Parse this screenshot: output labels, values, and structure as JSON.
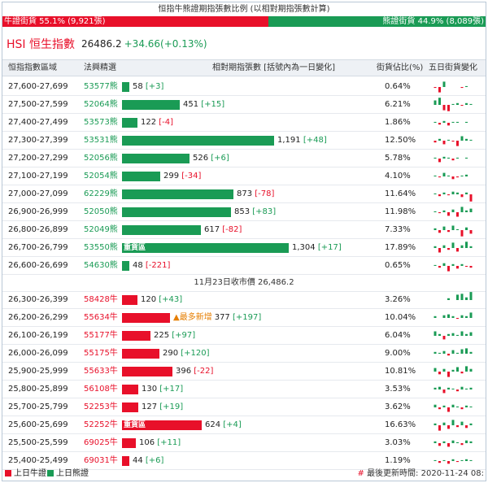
{
  "title": "恒指牛熊證期指張數比例 (以相對期指張數計算)",
  "ratio": {
    "bull_label": "牛證街貨 55.1% (9,921張)",
    "bull_pct": 55.1,
    "bear_label": "熊證街貨 44.9% (8,089張)",
    "bear_pct": 44.9
  },
  "hsi": {
    "name": "HSI 恒生指數",
    "value": "26486.2",
    "change": "+34.66(+0.13%)"
  },
  "headers": {
    "range": "恒指指數區域",
    "code": "法興精選",
    "qty": "相對期指張數 [括號內為一日變化]",
    "pct": "街貨佔比(%)",
    "chart": "五日街貨變化"
  },
  "colors": {
    "bull": "#e8102a",
    "bear": "#1a9b55",
    "new": "#e67e00"
  },
  "bear_rows": [
    {
      "range": "27,600-27,699",
      "code": "53577熊",
      "qty": "58",
      "chg": "[+3]",
      "neg": false,
      "pct": "0.64%",
      "tag": "",
      "spark": [
        0,
        -1,
        -6,
        6,
        0,
        0,
        0,
        -1,
        1,
        0
      ]
    },
    {
      "range": "27,500-27,599",
      "code": "52064熊",
      "qty": "451",
      "chg": "[+15]",
      "neg": false,
      "pct": "6.21%",
      "tag": "",
      "spark": [
        0,
        5,
        8,
        -6,
        -7,
        1,
        2,
        -1,
        2,
        1
      ]
    },
    {
      "range": "27,400-27,499",
      "code": "53573熊",
      "qty": "122",
      "chg": "[-4]",
      "neg": true,
      "pct": "1.86%",
      "tag": "",
      "spark": [
        0,
        1,
        -2,
        2,
        -3,
        1,
        1,
        0,
        1,
        0
      ]
    },
    {
      "range": "27,300-27,399",
      "code": "53531熊",
      "qty": "1,191",
      "chg": "[+48]",
      "neg": false,
      "pct": "12.50%",
      "tag": "",
      "spark": [
        0,
        -2,
        2,
        -4,
        1,
        -1,
        -6,
        5,
        2,
        1
      ]
    },
    {
      "range": "27,200-27,299",
      "code": "52056熊",
      "qty": "526",
      "chg": "[+6]",
      "neg": false,
      "pct": "5.78%",
      "tag": "",
      "spark": [
        0,
        1,
        -4,
        2,
        1,
        -2,
        1,
        0,
        1,
        0
      ]
    },
    {
      "range": "27,100-27,199",
      "code": "52054熊",
      "qty": "299",
      "chg": "[-34]",
      "neg": true,
      "pct": "4.10%",
      "tag": "",
      "spark": [
        0,
        1,
        -1,
        4,
        1,
        -3,
        -1,
        1,
        2,
        0
      ]
    },
    {
      "range": "27,000-27,099",
      "code": "62229熊",
      "qty": "873",
      "chg": "[-78]",
      "neg": true,
      "pct": "11.64%",
      "tag": "",
      "spark": [
        0,
        1,
        -2,
        2,
        -1,
        3,
        2,
        -3,
        2,
        -8
      ]
    },
    {
      "range": "26,900-26,999",
      "code": "52050熊",
      "qty": "853",
      "chg": "[+83]",
      "neg": false,
      "pct": "11.98%",
      "tag": "",
      "spark": [
        0,
        1,
        -1,
        2,
        -4,
        3,
        -5,
        6,
        2,
        4
      ]
    },
    {
      "range": "26,800-26,899",
      "code": "52049熊",
      "qty": "617",
      "chg": "[-82]",
      "neg": true,
      "pct": "7.33%",
      "tag": "",
      "spark": [
        0,
        2,
        -3,
        4,
        -2,
        5,
        1,
        -7,
        3,
        -4
      ]
    },
    {
      "range": "26,700-26,799",
      "code": "53550熊",
      "qty": "1,304",
      "chg": "[+17]",
      "neg": false,
      "pct": "17.89%",
      "tag": "重貨區",
      "spark": [
        0,
        2,
        -5,
        3,
        -2,
        6,
        -4,
        3,
        7,
        2
      ]
    },
    {
      "range": "26,600-26,699",
      "code": "54630熊",
      "qty": "48",
      "chg": "[-221]",
      "neg": true,
      "pct": "0.65%",
      "tag": "",
      "spark": [
        0,
        1,
        -2,
        3,
        -6,
        2,
        -3,
        2,
        -1,
        -2
      ]
    }
  ],
  "close_line": "11月23日收市價 26,486.2",
  "bull_rows": [
    {
      "range": "26,300-26,399",
      "code": "58428牛",
      "qty": "120",
      "chg": "[+43]",
      "neg": false,
      "pct": "3.26%",
      "tag": "",
      "newflag": "",
      "spark": [
        0,
        0,
        0,
        0,
        2,
        0,
        6,
        7,
        3,
        9
      ]
    },
    {
      "range": "26,200-26,299",
      "code": "55634牛",
      "qty": "377",
      "chg": "[+197]",
      "neg": false,
      "pct": "10.04%",
      "tag": "",
      "newflag": "▲最多新增",
      "spark": [
        0,
        2,
        0,
        3,
        4,
        2,
        -1,
        3,
        2,
        6
      ]
    },
    {
      "range": "26,100-26,199",
      "code": "55177牛",
      "qty": "225",
      "chg": "[+97]",
      "neg": false,
      "pct": "6.04%",
      "tag": "",
      "newflag": "",
      "spark": [
        0,
        5,
        2,
        -4,
        2,
        3,
        1,
        5,
        2,
        4
      ]
    },
    {
      "range": "26,000-26,099",
      "code": "55175牛",
      "qty": "290",
      "chg": "[+120]",
      "neg": false,
      "pct": "9.00%",
      "tag": "",
      "newflag": "",
      "spark": [
        0,
        2,
        1,
        3,
        -2,
        4,
        1,
        5,
        6,
        2
      ]
    },
    {
      "range": "25,900-25,999",
      "code": "55633牛",
      "qty": "396",
      "chg": "[-22]",
      "neg": true,
      "pct": "10.81%",
      "tag": "",
      "newflag": "",
      "spark": [
        0,
        4,
        -3,
        3,
        -6,
        2,
        5,
        -2,
        6,
        3
      ]
    },
    {
      "range": "25,800-25,899",
      "code": "56108牛",
      "qty": "130",
      "chg": "[+17]",
      "neg": false,
      "pct": "3.53%",
      "tag": "",
      "newflag": "",
      "spark": [
        0,
        2,
        3,
        -4,
        2,
        1,
        -2,
        3,
        1,
        2
      ]
    },
    {
      "range": "25,700-25,799",
      "code": "52253牛",
      "qty": "127",
      "chg": "[+19]",
      "neg": false,
      "pct": "3.62%",
      "tag": "",
      "newflag": "",
      "spark": [
        0,
        3,
        -2,
        2,
        -5,
        3,
        1,
        -2,
        2,
        1
      ]
    },
    {
      "range": "25,600-25,699",
      "code": "52252牛",
      "qty": "624",
      "chg": "[+4]",
      "neg": false,
      "pct": "16.63%",
      "tag": "重貨區",
      "newflag": "",
      "spark": [
        0,
        2,
        -6,
        3,
        -4,
        6,
        -2,
        4,
        -3,
        2
      ]
    },
    {
      "range": "25,500-25,599",
      "code": "69025牛",
      "qty": "106",
      "chg": "[+11]",
      "neg": false,
      "pct": "3.03%",
      "tag": "",
      "newflag": "",
      "spark": [
        0,
        2,
        -3,
        2,
        -4,
        3,
        1,
        -2,
        3,
        2
      ]
    },
    {
      "range": "25,400-25,499",
      "code": "69031牛",
      "qty": "44",
      "chg": "[+6]",
      "neg": false,
      "pct": "1.19%",
      "tag": "",
      "newflag": "",
      "spark": [
        0,
        1,
        -2,
        1,
        -3,
        2,
        -1,
        1,
        2,
        1
      ]
    }
  ],
  "legend": {
    "bull": "上日牛證",
    "bear": "上日熊證",
    "updated_hash": "#",
    "updated": "最後更新時間: 2020-11-24 08:"
  }
}
